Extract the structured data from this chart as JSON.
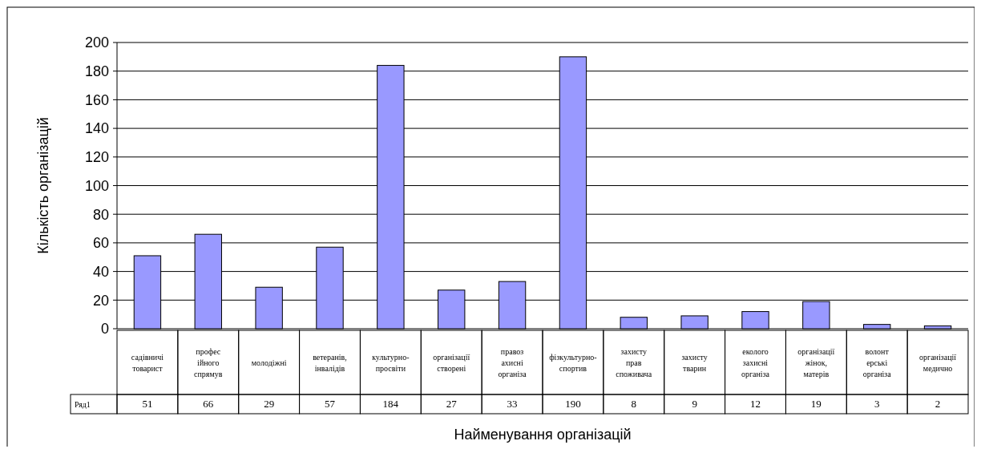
{
  "chart_data": {
    "type": "bar",
    "ylabel": "Кількість організацій",
    "xlabel": "Найменування організацій",
    "categories": [
      "садівничі товарист",
      "професійного спрямув",
      "молодіжні",
      "ветеранів, інвалідів",
      "культурно-просвіти",
      "організації створені",
      "правозахисні організа",
      "фізкультурно-спортив",
      "захисту прав споживача",
      "захисту тварин",
      "екологозахисні організа",
      "організації жінок, матерів",
      "волонтерські організа",
      "організації медично"
    ],
    "series": [
      {
        "name": "Ряд1",
        "color": "#9999ff",
        "values": [
          51,
          66,
          29,
          57,
          184,
          27,
          33,
          190,
          8,
          9,
          12,
          19,
          3,
          2
        ]
      }
    ],
    "ylim": [
      0,
      200
    ],
    "yticks": [
      0,
      20,
      40,
      60,
      80,
      100,
      120,
      140,
      160,
      180,
      200
    ],
    "grid": "y",
    "data_labels": true,
    "legend": "bottom left"
  }
}
